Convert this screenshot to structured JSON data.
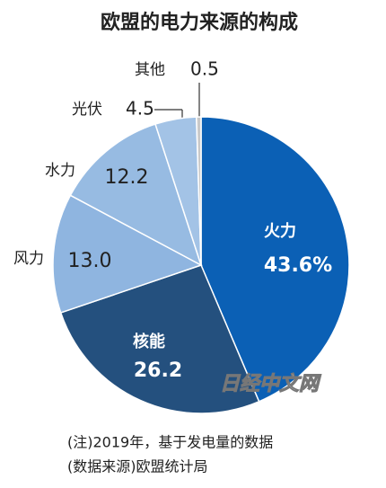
{
  "chart_data": {
    "type": "pie",
    "title": "欧盟的电力来源的构成",
    "categories": [
      "火力",
      "核能",
      "风力",
      "水力",
      "光伏",
      "其他"
    ],
    "values": [
      43.6,
      26.2,
      13.0,
      12.2,
      4.5,
      0.5
    ],
    "value_labels": [
      "43.6%",
      "26.2",
      "13.0",
      "12.2",
      "4.5",
      "0.5"
    ],
    "colors": [
      "#0b60b5",
      "#24507e",
      "#8fb5e0",
      "#97bbe2",
      "#a3c3e6",
      "#c9c9c9"
    ],
    "notes": [
      "(注)2019年，基于发电量的数据",
      "(数据来源)欧盟统计局"
    ],
    "watermark": "日经中文网"
  }
}
